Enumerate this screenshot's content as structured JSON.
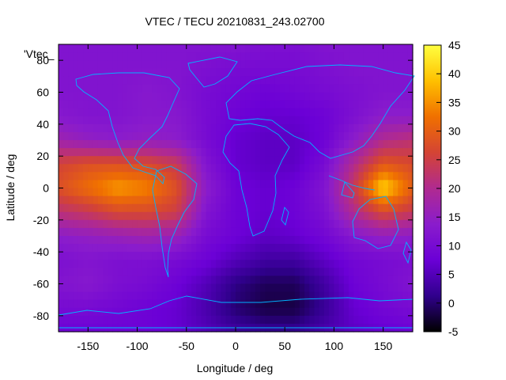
{
  "chart_data": {
    "type": "heatmap",
    "title": "VTEC / TECU 20210831_243.02700",
    "xlabel": "Longitude / deg",
    "ylabel": "Latitude / deg",
    "key_label": "'Vtec_",
    "xlim": [
      -180,
      180
    ],
    "ylim": [
      -90,
      90
    ],
    "xticks": [
      -150,
      -100,
      -50,
      0,
      50,
      100,
      150
    ],
    "yticks": [
      -80,
      -60,
      -40,
      -20,
      0,
      20,
      40,
      60,
      80
    ],
    "colorbar": {
      "min": -5,
      "max": 45,
      "ticks": [
        -5,
        0,
        5,
        10,
        15,
        20,
        25,
        30,
        35,
        40,
        45
      ],
      "palette": [
        "#000000",
        "#30008c",
        "#6b00d6",
        "#8a1ccc",
        "#b02a90",
        "#d44434",
        "#f07000",
        "#ffc000",
        "#ffff40"
      ]
    },
    "grid": false,
    "coastline_color": "#00b4ff",
    "x": [
      -180,
      -150,
      -120,
      -90,
      -60,
      -30,
      0,
      30,
      60,
      90,
      120,
      150,
      180
    ],
    "y": [
      90,
      75,
      60,
      45,
      30,
      15,
      0,
      -15,
      -30,
      -45,
      -60,
      -75,
      -90
    ],
    "z": [
      [
        12,
        12,
        12,
        12,
        12,
        12,
        12,
        11,
        11,
        12,
        12,
        12,
        12
      ],
      [
        12,
        12,
        12,
        12,
        12,
        11,
        10,
        10,
        10,
        11,
        12,
        12,
        12
      ],
      [
        12,
        12,
        12,
        13,
        12,
        10,
        9,
        8,
        9,
        10,
        11,
        12,
        12
      ],
      [
        13,
        12,
        12,
        13,
        13,
        10,
        8,
        7,
        7,
        8,
        11,
        14,
        14
      ],
      [
        17,
        15,
        14,
        15,
        14,
        10,
        7,
        6,
        6,
        8,
        14,
        20,
        22
      ],
      [
        26,
        28,
        28,
        27,
        24,
        12,
        7,
        6,
        6,
        10,
        20,
        29,
        27
      ],
      [
        28,
        32,
        36,
        34,
        28,
        14,
        8,
        7,
        8,
        12,
        24,
        41,
        30
      ],
      [
        22,
        24,
        27,
        27,
        25,
        12,
        8,
        7,
        8,
        11,
        20,
        27,
        24
      ],
      [
        14,
        15,
        16,
        17,
        16,
        10,
        8,
        6,
        7,
        9,
        13,
        15,
        14
      ],
      [
        11,
        12,
        11,
        11,
        10,
        8,
        5,
        3,
        3,
        6,
        9,
        10,
        11
      ],
      [
        12,
        13,
        11,
        10,
        8,
        5,
        1,
        -1,
        -1,
        3,
        8,
        10,
        12
      ],
      [
        10,
        10,
        9,
        8,
        7,
        4,
        0,
        -2,
        -2,
        2,
        7,
        9,
        10
      ],
      [
        8,
        8,
        8,
        8,
        7,
        5,
        3,
        2,
        2,
        4,
        6,
        7,
        8
      ]
    ]
  }
}
